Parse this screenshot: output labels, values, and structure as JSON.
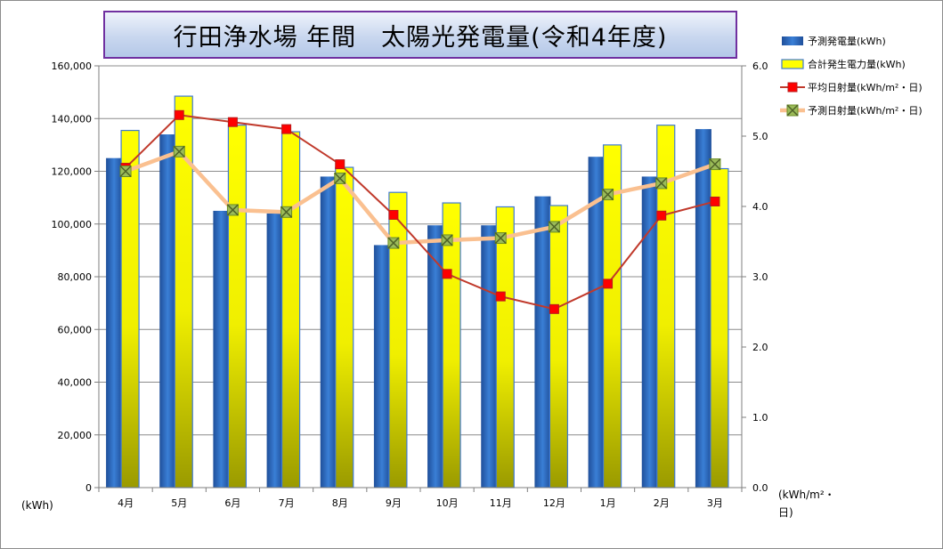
{
  "chart_data": {
    "type": "bar",
    "title": "行田浄水場 年間　太陽光発電量(令和4年度)",
    "categories": [
      "4月",
      "5月",
      "6月",
      "7月",
      "8月",
      "9月",
      "10月",
      "11月",
      "12月",
      "1月",
      "2月",
      "3月"
    ],
    "y_left": {
      "unit_label": "(kWh)",
      "range": [
        0,
        160000
      ],
      "ticks": [
        "0",
        "20,000",
        "40,000",
        "60,000",
        "80,000",
        "100,000",
        "120,000",
        "140,000",
        "160,000"
      ]
    },
    "y_right": {
      "unit_label": "(kWh/m²・日)",
      "range": [
        0,
        6
      ],
      "ticks": [
        "0.0",
        "1.0",
        "2.0",
        "3.0",
        "4.0",
        "5.0",
        "6.0"
      ]
    },
    "grid": true,
    "legend_position": "right",
    "series": [
      {
        "name": "予測発電量(kWh)",
        "kind": "bar",
        "axis": "left",
        "color": "#2e6fc4",
        "values": [
          125000,
          134000,
          105000,
          104000,
          118000,
          92000,
          99500,
          99500,
          110500,
          125500,
          118000,
          136000
        ]
      },
      {
        "name": "合計発生電力量(kWh)",
        "kind": "bar",
        "axis": "left",
        "color": "#f2f200",
        "values": [
          135500,
          148500,
          137500,
          135000,
          121500,
          112000,
          108000,
          106500,
          107000,
          130000,
          137500,
          121000
        ]
      },
      {
        "name": "平均日射量(kWh/m²・日)",
        "kind": "line",
        "axis": "right",
        "color": "#c0392b",
        "values": [
          4.55,
          5.3,
          5.2,
          5.1,
          4.6,
          3.88,
          3.04,
          2.72,
          2.54,
          2.9,
          3.87,
          4.07
        ]
      },
      {
        "name": "予測日射量(kWh/m²・日)",
        "kind": "line",
        "axis": "right",
        "color": "#fac090",
        "values": [
          4.5,
          4.78,
          3.95,
          3.92,
          4.4,
          3.48,
          3.52,
          3.55,
          3.71,
          4.17,
          4.33,
          4.6
        ]
      }
    ]
  }
}
